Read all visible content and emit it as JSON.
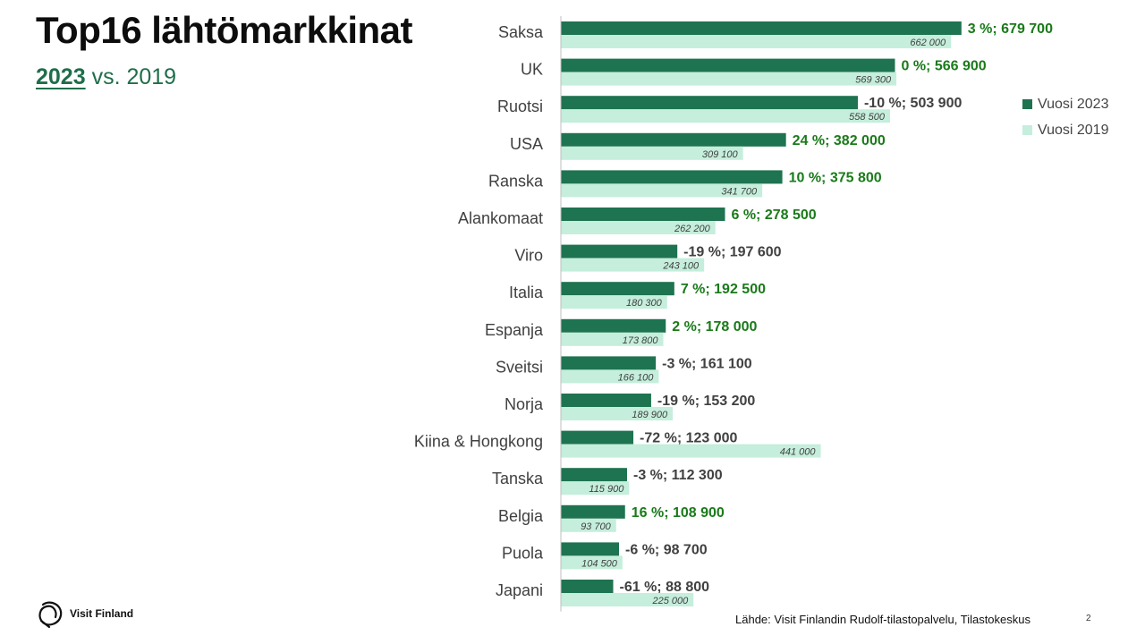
{
  "header": {
    "title": "Top16 lähtömarkkinat",
    "subtitle_year": "2023",
    "subtitle_rest": " vs. 2019"
  },
  "legend": {
    "series_2023": "Vuosi 2023",
    "series_2019": "Vuosi 2019"
  },
  "footer": {
    "logo_text": "Visit Finland",
    "source": "Lähde: Visit Finlandin Rudolf-tilastopalvelu, Tilastokeskus",
    "page_number": "2"
  },
  "colors": {
    "bar_2023": "#1e7350",
    "bar_2019": "#c5eedc",
    "label_positive": "#1a7a1a",
    "label_negative": "#404040",
    "label_2019": "#404040",
    "axis": "#bfbfbf",
    "category": "#404040"
  },
  "chart_data": {
    "type": "bar",
    "orientation": "horizontal",
    "title": "Top16 lähtömarkkinat",
    "categories": [
      "Saksa",
      "UK",
      "Ruotsi",
      "USA",
      "Ranska",
      "Alankomaat",
      "Viro",
      "Italia",
      "Espanja",
      "Sveitsi",
      "Norja",
      "Kiina & Hongkong",
      "Tanska",
      "Belgia",
      "Puola",
      "Japani"
    ],
    "series": [
      {
        "name": "Vuosi 2023",
        "values": [
          679700,
          566900,
          503900,
          382000,
          375800,
          278500,
          197600,
          192500,
          178000,
          161100,
          153200,
          123000,
          112300,
          108900,
          98700,
          88800
        ],
        "labels": [
          "3 %; 679 700",
          "0 %; 566 900",
          "-10 %; 503 900",
          "24 %; 382 000",
          "10 %; 375 800",
          "6 %; 278 500",
          "-19 %; 197 600",
          "7 %; 192 500",
          "2 %; 178 000",
          "-3 %; 161 100",
          "-19 %; 153 200",
          "-72 %; 123 000",
          "-3 %; 112 300",
          "16 %; 108 900",
          "-6 %; 98 700",
          "-61 %; 88 800"
        ],
        "label_positive": [
          true,
          true,
          false,
          true,
          true,
          true,
          false,
          true,
          true,
          false,
          false,
          false,
          false,
          true,
          false,
          false
        ]
      },
      {
        "name": "Vuosi 2019",
        "values": [
          662000,
          569300,
          558500,
          309100,
          341700,
          262200,
          243100,
          180300,
          173800,
          166100,
          189900,
          441000,
          115900,
          93700,
          104500,
          225000
        ],
        "labels": [
          "662 000",
          "569 300",
          "558 500",
          "309 100",
          "341 700",
          "262 200",
          "243 100",
          "180 300",
          "173 800",
          "166 100",
          "189 900",
          "441 000",
          "115 900",
          "93 700",
          "104 500",
          "225 000"
        ]
      }
    ],
    "xlim": [
      0,
      850000
    ],
    "grid": false,
    "legend_position": "right"
  }
}
